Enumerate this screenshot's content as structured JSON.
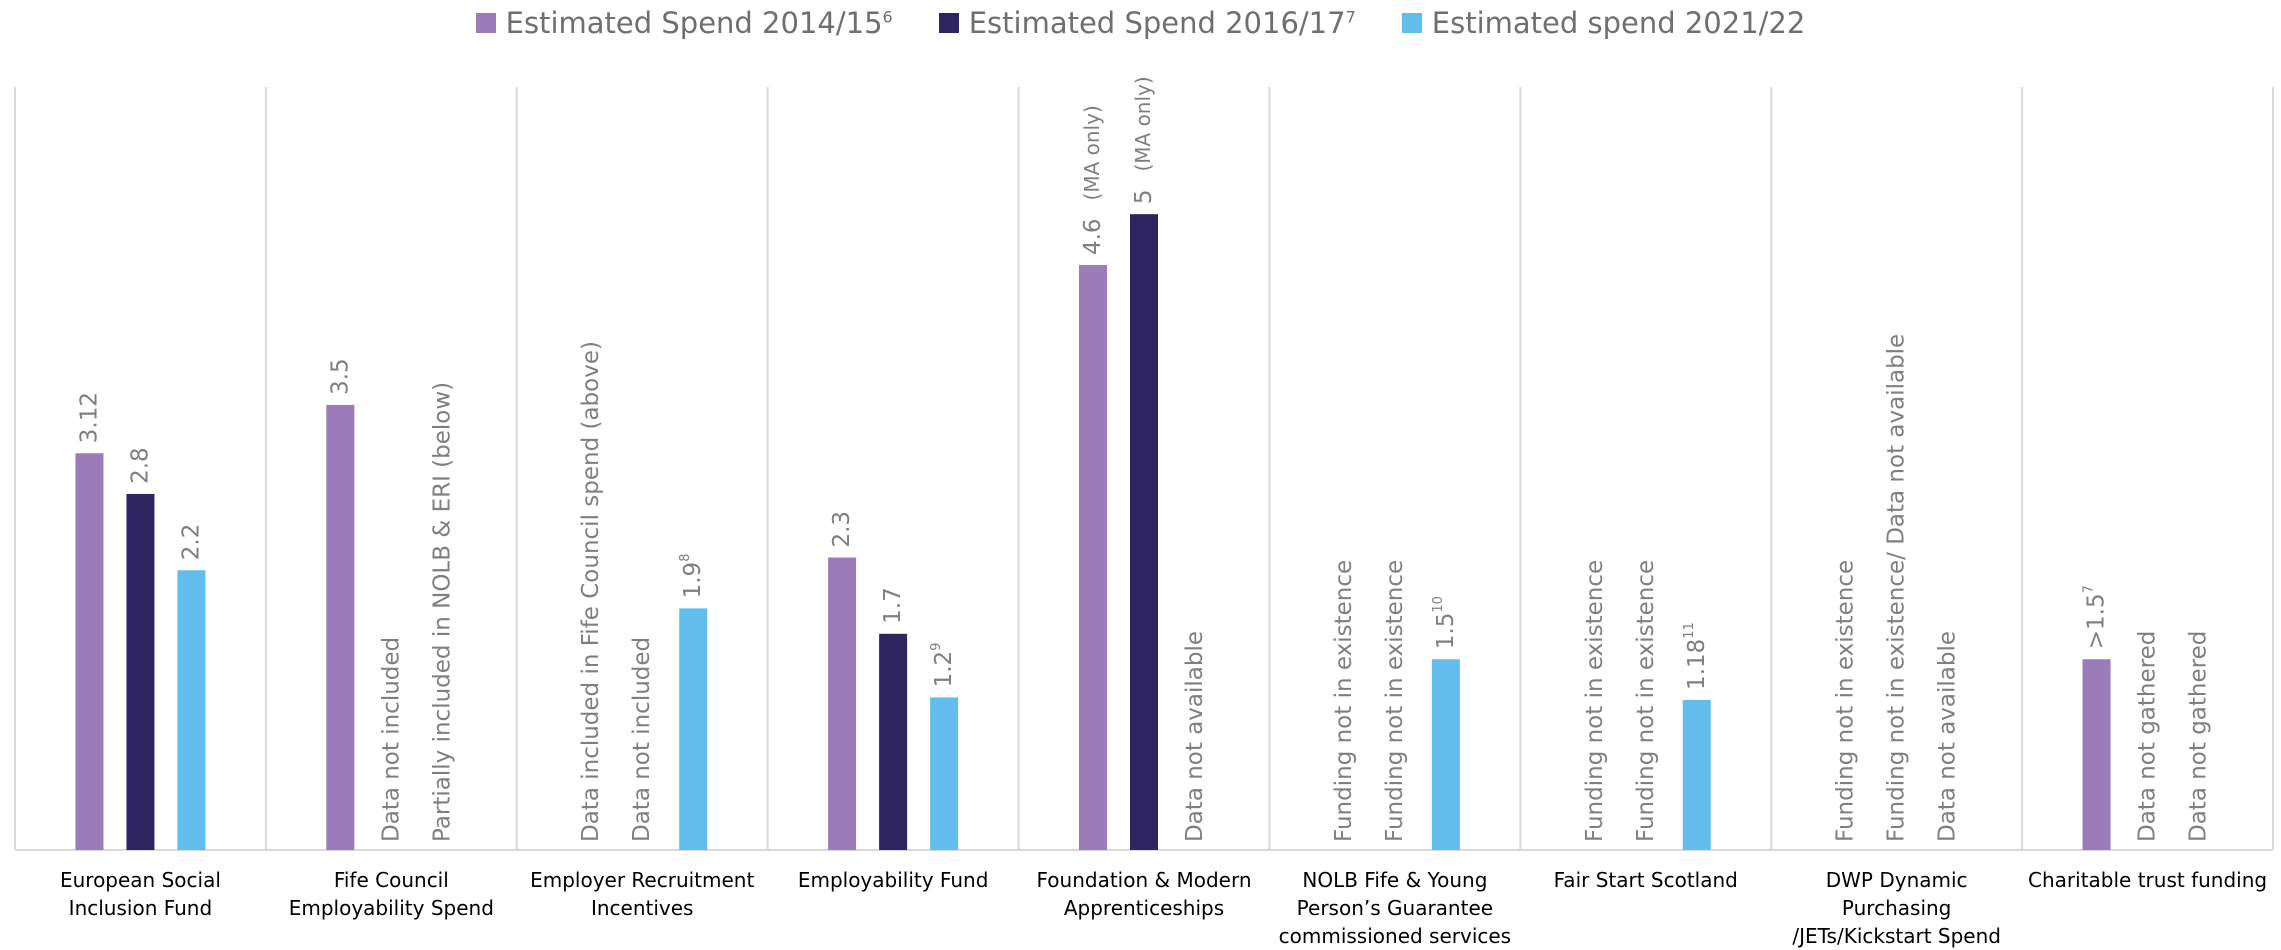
{
  "chart_data": {
    "type": "bar",
    "categories": [
      "European Social Inclusion Fund",
      "Fife Council Employability Spend",
      "Employer Recruitment Incentives",
      "Employability Fund",
      "Foundation & Modern Apprenticeships",
      "NOLB Fife & Young Person’s Guarantee commissioned services",
      "Fair Start Scotland",
      "DWP Dynamic Purchasing /JETs/Kickstart Spend",
      "Charitable trust funding"
    ],
    "ylim": [
      0,
      6
    ],
    "series": [
      {
        "name": "Estimated Spend 2014/15",
        "note": "6",
        "color": "#9b7bb8",
        "values": [
          3.12,
          3.5,
          null,
          2.3,
          4.6,
          null,
          null,
          null,
          1.5
        ],
        "value_labels": [
          "3.12",
          "3.5",
          "Data included in Fife Council spend (above)",
          "2.3",
          "4.6",
          "Funding not in existence",
          "Funding not in existence",
          "Funding not in existence",
          ">1.5"
        ],
        "value_notes": [
          null,
          null,
          null,
          null,
          null,
          null,
          null,
          null,
          "7"
        ],
        "value_annotations": [
          null,
          null,
          null,
          null,
          "(MA only)",
          null,
          null,
          null,
          null
        ]
      },
      {
        "name": "Estimated Spend 2016/17",
        "note": "7",
        "color": "#2e2460",
        "values": [
          2.8,
          null,
          null,
          1.7,
          5,
          null,
          null,
          null,
          null
        ],
        "value_labels": [
          "2.8",
          "Data not included",
          "Data not included",
          "1.7",
          "5",
          "Funding not in existence",
          "Funding not in existence",
          "Funding not in existence/ Data not available",
          "Data not gathered"
        ],
        "value_notes": [
          null,
          null,
          null,
          null,
          null,
          null,
          null,
          null,
          null
        ],
        "value_annotations": [
          null,
          null,
          null,
          null,
          "(MA only)",
          null,
          null,
          null,
          null
        ]
      },
      {
        "name": "Estimated spend 2021/22",
        "note": null,
        "color": "#62bdec",
        "values": [
          2.2,
          null,
          1.9,
          1.2,
          null,
          1.5,
          1.18,
          null,
          null
        ],
        "value_labels": [
          "2.2",
          "Partially included in NOLB & ERI (below)",
          "1.9",
          "1.2",
          "Data not available",
          "1.5",
          "1.18",
          "Data not available",
          "Data not gathered"
        ],
        "value_notes": [
          null,
          null,
          "8",
          "9",
          null,
          "10",
          "11",
          null,
          null
        ],
        "value_annotations": [
          null,
          null,
          null,
          null,
          null,
          null,
          null,
          null,
          null
        ]
      }
    ]
  }
}
